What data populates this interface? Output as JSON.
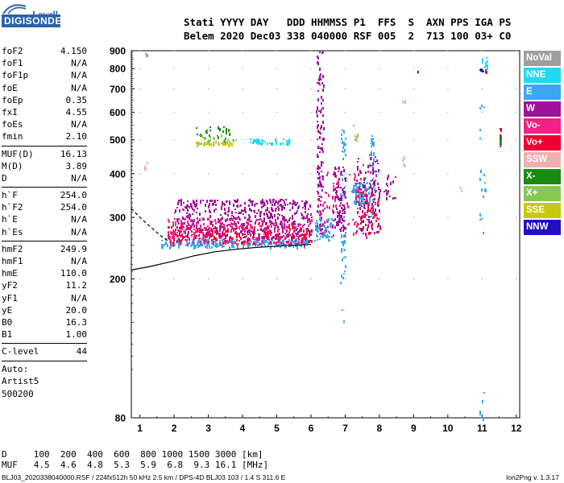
{
  "logo": {
    "top": "Lowell",
    "bottom": "DIGISONDE"
  },
  "header": {
    "line1": "Stati YYYY DAY   DDD HHMMSS P1  FFS  S  AXN PPS IGA PS",
    "line2": "Belem 2020 Dec03 338 040000 RSF 005  2  713 100 03+ C0"
  },
  "params_groups": [
    [
      [
        "foF2",
        "4.150"
      ],
      [
        "foF1",
        "N/A"
      ],
      [
        "foF1p",
        "N/A"
      ],
      [
        "foE",
        "N/A"
      ],
      [
        "foEp",
        "0.35"
      ],
      [
        "fxI",
        "4.55"
      ],
      [
        "foEs",
        "N/A"
      ],
      [
        "fmin",
        "2.10"
      ]
    ],
    [
      [
        "MUF(D)",
        "16.13"
      ],
      [
        "M(D)",
        "3.89"
      ],
      [
        "D",
        "N/A"
      ]
    ],
    [
      [
        "h`F",
        "254.0"
      ],
      [
        "h`F2",
        "254.0"
      ],
      [
        "h`E",
        "N/A"
      ],
      [
        "h`Es",
        "N/A"
      ]
    ],
    [
      [
        "hmF2",
        "249.9"
      ],
      [
        "hmF1",
        "N/A"
      ],
      [
        "hmE",
        "110.0"
      ],
      [
        "yF2",
        "11.2"
      ],
      [
        "yF1",
        "N/A"
      ],
      [
        "yE",
        "20.0"
      ],
      [
        "B0",
        "16.3"
      ],
      [
        "B1",
        "1.00"
      ]
    ],
    [
      [
        "C-level",
        "44"
      ]
    ]
  ],
  "autoscaling": [
    "Auto:",
    "Artist5",
    "500200"
  ],
  "legend": [
    {
      "label": "NoVal",
      "color": "#9e9e9e"
    },
    {
      "label": "NNE",
      "color": "#22d8f0"
    },
    {
      "label": "E",
      "color": "#3aa8f0"
    },
    {
      "label": "W",
      "color": "#a0109a"
    },
    {
      "label": "Vo-",
      "color": "#ee2288"
    },
    {
      "label": "Vo+",
      "color": "#ee0033"
    },
    {
      "label": "SSW",
      "color": "#f0b0b0"
    },
    {
      "label": "X-",
      "color": "#1a8a10"
    },
    {
      "label": "X+",
      "color": "#88c850"
    },
    {
      "label": "SSE",
      "color": "#c8c810"
    },
    {
      "label": "NNW",
      "color": "#2010c0"
    }
  ],
  "muf_table": {
    "line1": "D     100  200  400  600  800 1000 1500 3000 [km]",
    "line2": "MUF   4.5  4.6  4.8  5.3  5.9  6.8  9.3 16.1 [MHz]"
  },
  "footer": {
    "left": "BLJ03_2020338040000.RSF / 224fx512h 50 kHz 2.5 km / DPS-4D BLJ03 103 / 1.4 S 311.6 E",
    "right": "Ion2Png v. 1.3.17"
  },
  "chart_data": {
    "type": "scatter",
    "title": "",
    "xlabel": "",
    "ylabel": "",
    "xlim": [
      0.75,
      12.1
    ],
    "ylim": [
      80,
      900
    ],
    "yscale": "log",
    "x_ticks": [
      1,
      2,
      3,
      4,
      5,
      6,
      7,
      8,
      9,
      10,
      11,
      12
    ],
    "y_ticks": [
      80,
      200,
      300,
      400,
      500,
      600,
      700,
      800,
      900
    ],
    "grid": true,
    "legend_position": "right",
    "series": [
      {
        "name": "E",
        "color": "#3aa8f0",
        "clusters": [
          {
            "x": [
              1.6,
              5.9
            ],
            "y": [
              248,
              262
            ],
            "n": 260
          },
          {
            "x": [
              6.1,
              6.6
            ],
            "y": [
              258,
              300
            ],
            "n": 60
          },
          {
            "x": [
              6.85,
              7.0
            ],
            "y": [
              150,
              560
            ],
            "n": 60
          },
          {
            "x": [
              7.2,
              7.7
            ],
            "y": [
              330,
              380
            ],
            "n": 80
          },
          {
            "x": [
              7.7,
              7.85
            ],
            "y": [
              300,
              520
            ],
            "n": 45
          },
          {
            "x": [
              10.9,
              11.1
            ],
            "y": [
              270,
              690
            ],
            "n": 18
          },
          {
            "x": [
              10.9,
              11.05
            ],
            "y": [
              80,
              96
            ],
            "n": 6
          }
        ]
      },
      {
        "name": "W",
        "color": "#a0109a",
        "clusters": [
          {
            "x": [
              2.0,
              6.0
            ],
            "y": [
              262,
              340
            ],
            "n": 520
          },
          {
            "x": [
              6.15,
              6.35
            ],
            "y": [
              270,
              900
            ],
            "n": 110
          },
          {
            "x": [
              6.6,
              7.0
            ],
            "y": [
              275,
              420
            ],
            "n": 90
          },
          {
            "x": [
              7.3,
              8.0
            ],
            "y": [
              270,
              450
            ],
            "n": 110
          },
          {
            "x": [
              8.1,
              8.5
            ],
            "y": [
              340,
              420
            ],
            "n": 18
          },
          {
            "x": [
              11.0,
              11.1
            ],
            "y": [
              780,
              800
            ],
            "n": 4
          }
        ]
      },
      {
        "name": "Vo-",
        "color": "#ee2288",
        "clusters": [
          {
            "x": [
              1.8,
              6.0
            ],
            "y": [
              252,
              300
            ],
            "n": 300
          },
          {
            "x": [
              6.2,
              7.9
            ],
            "y": [
              262,
              420
            ],
            "n": 90
          }
        ]
      },
      {
        "name": "Vo+",
        "color": "#ee0033",
        "clusters": [
          {
            "x": [
              1.8,
              6.0
            ],
            "y": [
              255,
              285
            ],
            "n": 160
          },
          {
            "x": [
              7.3,
              8.0
            ],
            "y": [
              270,
              360
            ],
            "n": 40
          },
          {
            "x": [
              11.5,
              11.55
            ],
            "y": [
              480,
              550
            ],
            "n": 10
          }
        ]
      },
      {
        "name": "NNE",
        "color": "#22d8f0",
        "clusters": [
          {
            "x": [
              4.2,
              5.4
            ],
            "y": [
              490,
              505
            ],
            "n": 40
          },
          {
            "x": [
              10.95,
              11.15
            ],
            "y": [
              800,
              890
            ],
            "n": 14
          }
        ]
      },
      {
        "name": "X-",
        "color": "#1a8a10",
        "clusters": [
          {
            "x": [
              2.6,
              3.6
            ],
            "y": [
              490,
              550
            ],
            "n": 25
          },
          {
            "x": [
              11.5,
              11.55
            ],
            "y": [
              490,
              530
            ],
            "n": 6
          }
        ]
      },
      {
        "name": "X+",
        "color": "#88c850",
        "clusters": [
          {
            "x": [
              2.6,
              3.8
            ],
            "y": [
              485,
              520
            ],
            "n": 30
          },
          {
            "x": [
              7.2,
              7.4
            ],
            "y": [
              500,
              560
            ],
            "n": 6
          }
        ]
      },
      {
        "name": "SSE",
        "color": "#c8c810",
        "clusters": [
          {
            "x": [
              2.6,
              3.7
            ],
            "y": [
              485,
              495
            ],
            "n": 30
          }
        ]
      },
      {
        "name": "SSW",
        "color": "#f0b0b0",
        "clusters": [
          {
            "x": [
              1.1,
              1.2
            ],
            "y": [
              390,
              440
            ],
            "n": 5
          },
          {
            "x": [
              8.65,
              8.75
            ],
            "y": [
              420,
              460
            ],
            "n": 5
          },
          {
            "x": [
              8.65,
              8.75
            ],
            "y": [
              630,
              650
            ],
            "n": 4
          },
          {
            "x": [
              10.3,
              10.4
            ],
            "y": [
              360,
              370
            ],
            "n": 3
          }
        ]
      },
      {
        "name": "NNW",
        "color": "#2010c0",
        "clusters": [
          {
            "x": [
              10.9,
              11.0
            ],
            "y": [
              790,
              800
            ],
            "n": 4
          },
          {
            "x": [
              9.1,
              9.2
            ],
            "y": [
              782,
              790
            ],
            "n": 2
          }
        ]
      },
      {
        "name": "NoVal",
        "color": "#9e9e9e",
        "clusters": [
          {
            "x": [
              1.1,
              1.3
            ],
            "y": [
              875,
              890
            ],
            "n": 3
          }
        ]
      }
    ],
    "profile_lines": [
      {
        "name": "profile-solid",
        "style": "solid",
        "x": [
          0.75,
          1.3,
          2.0,
          2.6,
          3.2,
          3.8,
          4.4,
          5.0,
          5.6,
          6.0
        ],
        "y": [
          212,
          217,
          225,
          233,
          239,
          243,
          246,
          248,
          250,
          251
        ]
      },
      {
        "name": "profile-dashed",
        "style": "dashed",
        "x": [
          0.75,
          1.0,
          1.3,
          1.6,
          1.9
        ],
        "y": [
          318,
          300,
          282,
          266,
          254
        ]
      }
    ]
  }
}
